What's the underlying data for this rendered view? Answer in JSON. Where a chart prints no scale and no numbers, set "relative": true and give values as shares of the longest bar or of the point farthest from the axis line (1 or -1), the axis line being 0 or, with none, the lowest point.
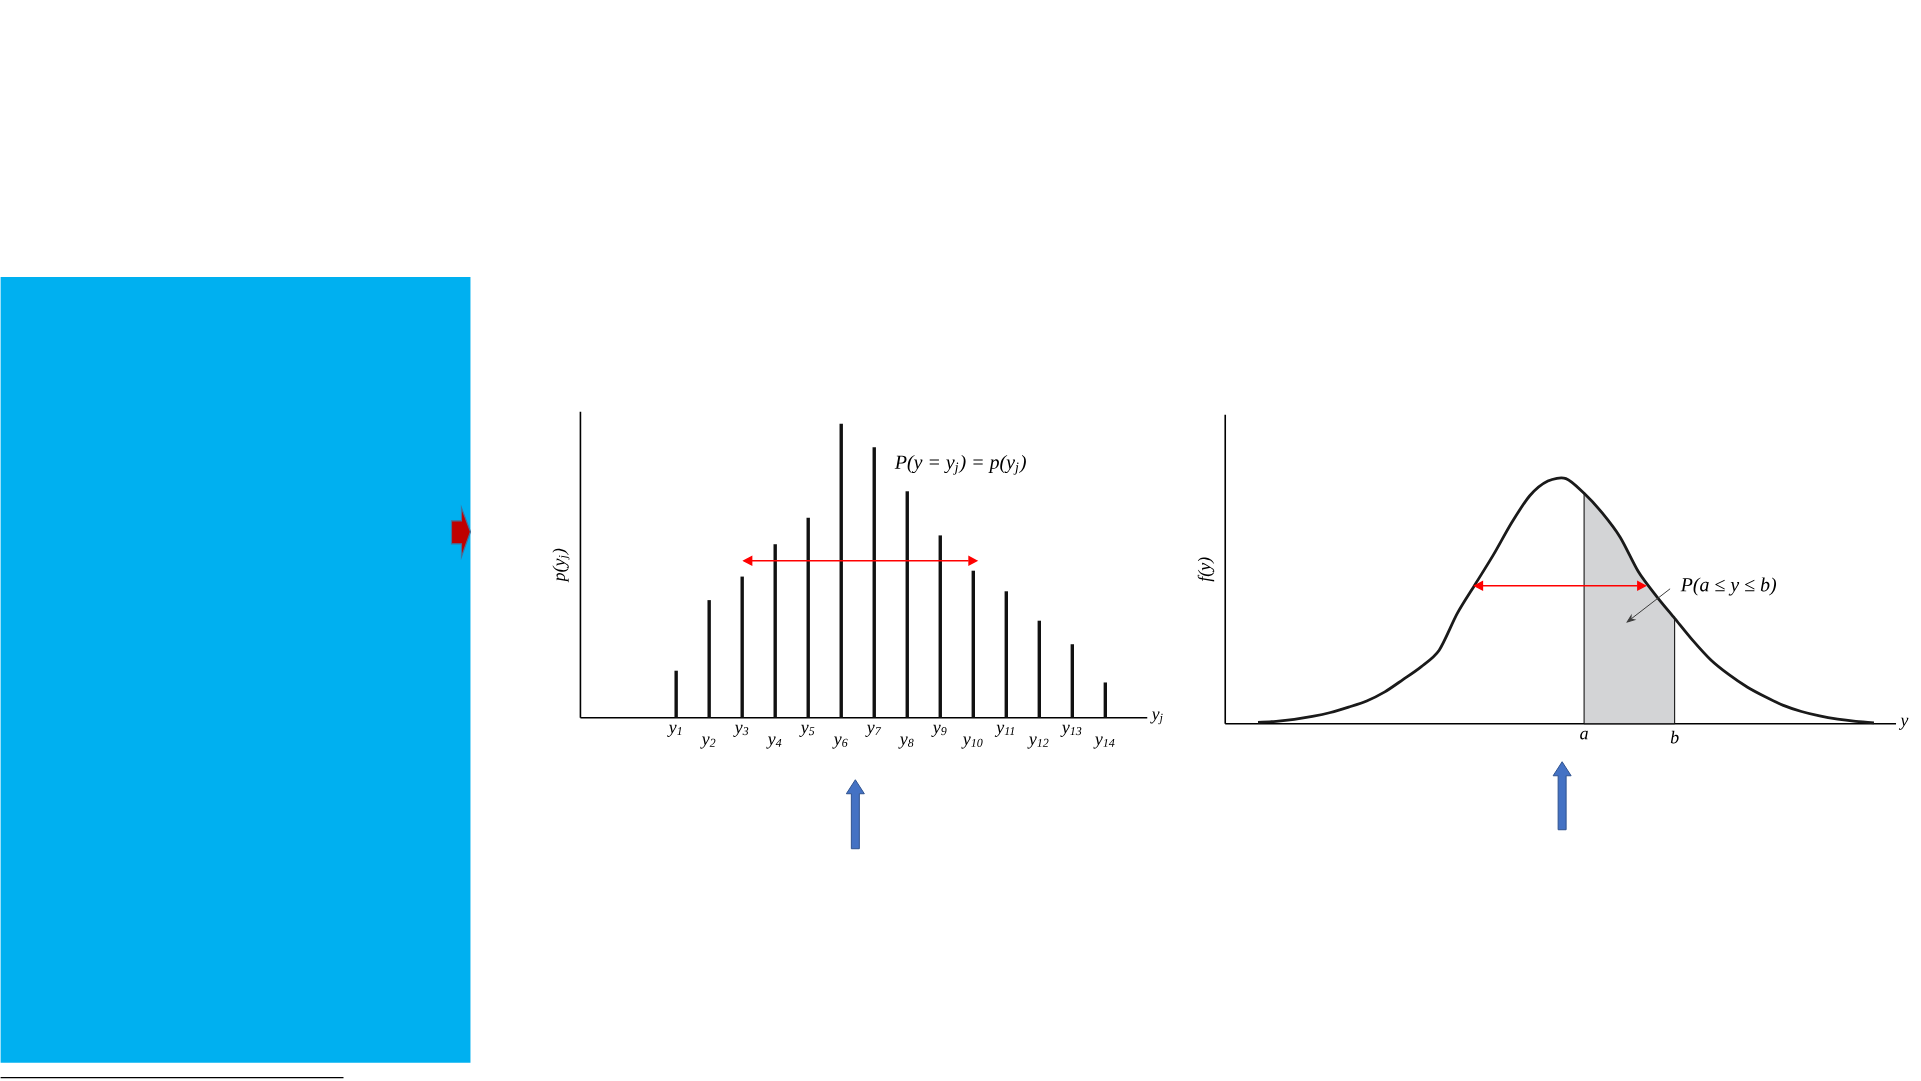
{
  "chart_data": [
    {
      "type": "bar",
      "relative": true,
      "xlabel": "y$_{j}$",
      "ylabel": "p(y$_{j}$)",
      "categories": [
        "y$_{1}$",
        "y$_{2}$",
        "y$_{3}$",
        "y$_{4}$",
        "y$_{5}$",
        "y$_{6}$",
        "y$_{7}$",
        "y$_{8}$",
        "y$_{9}$",
        "y$_{10}$",
        "y$_{11}$",
        "y$_{12}$",
        "y$_{13}$",
        "y$_{14}$"
      ],
      "values": [
        0.16,
        0.4,
        0.48,
        0.59,
        0.68,
        1,
        0.92,
        0.77,
        0.62,
        0.5,
        0.43,
        0.33,
        0.25,
        0.12
      ],
      "color": "#111111",
      "annotations": [
        "P(y = y$_{j}$) = p(y$_{j}$)"
      ]
    },
    {
      "type": "line",
      "relative": true,
      "xlabel": "y",
      "ylabel": "f(y)",
      "categories": [
        null,
        null,
        null,
        null,
        null,
        null,
        null,
        null,
        null,
        null,
        null,
        null,
        null,
        null,
        null,
        null,
        null,
        null,
        "a",
        null,
        null,
        null,
        null,
        "b",
        null,
        null,
        null,
        null,
        null,
        null,
        null,
        null,
        null,
        null,
        null
      ],
      "series": [
        {
          "type": "area",
          "color": "#d3d4d6",
          "values": [
            null,
            null,
            null,
            null,
            null,
            null,
            null,
            null,
            null,
            null,
            null,
            null,
            null,
            null,
            null,
            null,
            null,
            null,
            0.94,
            0.86,
            0.76,
            0.62,
            0.52,
            0.43,
            null,
            null,
            null,
            null,
            null,
            null,
            null,
            null,
            null,
            null,
            null
          ]
        },
        {
          "type": "line",
          "color": "#1a1a1a",
          "values": [
            0.006,
            0.01,
            0.018,
            0.03,
            0.046,
            0.068,
            0.093,
            0.13,
            0.18,
            0.232,
            0.3,
            0.45,
            0.57,
            0.69,
            0.82,
            0.93,
            0.99,
            1,
            0.94,
            0.86,
            0.76,
            0.62,
            0.52,
            0.43,
            0.34,
            0.26,
            0.2,
            0.15,
            0.11,
            0.075,
            0.05,
            0.032,
            0.019,
            0.01,
            0.004
          ]
        }
      ],
      "annotations": [
        "P(a ≤ y ≤ b)"
      ]
    }
  ]
}
